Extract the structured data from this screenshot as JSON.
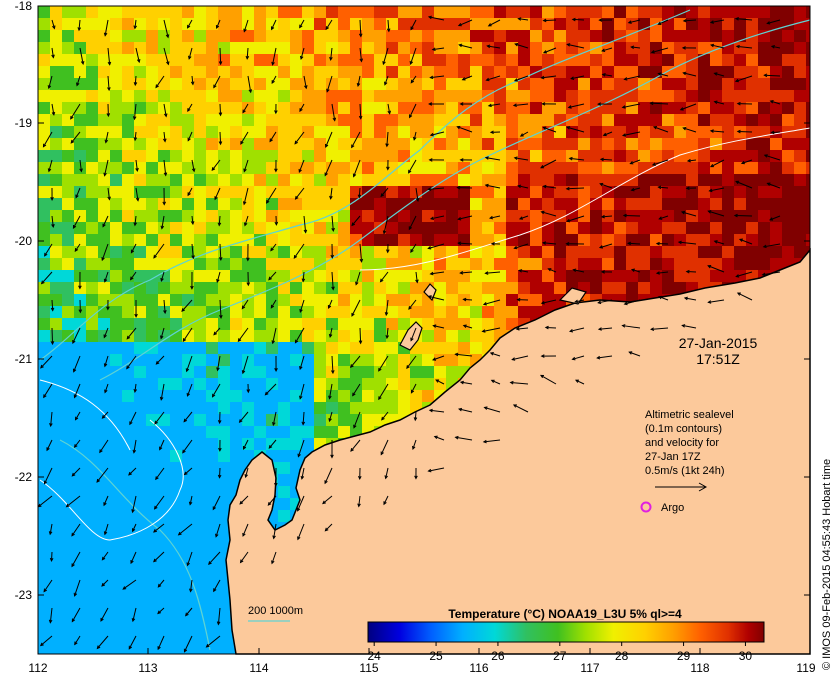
{
  "map": {
    "axes": {
      "lon_ticks": [
        "112",
        "113",
        "114",
        "115",
        "116",
        "117",
        "118",
        "119"
      ],
      "lat_ticks": [
        "-18",
        "-19",
        "-20",
        "-21",
        "-22",
        "-23"
      ],
      "lon_range": [
        112,
        119
      ],
      "lat_range": [
        -23.6,
        -18
      ]
    },
    "timestamp": {
      "date": "27-Jan-2015",
      "time": "17:51Z"
    },
    "legend_note": {
      "lines": [
        "Altimetric sealevel",
        "(0.1m contours)",
        "and velocity for",
        "27-Jan 17Z",
        "0.5m/s (1kt 24h)"
      ]
    },
    "argo_label": "Argo",
    "depth_legend": "200  1000m",
    "colorbar": {
      "title": "Temperature (°C) NOAA19_L3U 5% ql>=4",
      "ticks": [
        "24",
        "25",
        "26",
        "27",
        "28",
        "29",
        "30"
      ],
      "range": [
        23.9,
        30.3
      ]
    },
    "credit": "© IMOS 09-Feb-2015 04:55:43 Hobart time",
    "colors": {
      "land": "#fcc99b",
      "coast": "#000000",
      "contour": "#ffffff",
      "isobath": "#5fd3d3",
      "argo_marker": "#e020e0",
      "colorbar_stops": [
        "#000080",
        "#0000e0",
        "#0060ff",
        "#00b0ff",
        "#00d8d8",
        "#30c060",
        "#40c020",
        "#a0e000",
        "#f0f000",
        "#ffd000",
        "#ffa000",
        "#ff6000",
        "#e03000",
        "#b00000",
        "#800000"
      ]
    }
  }
}
